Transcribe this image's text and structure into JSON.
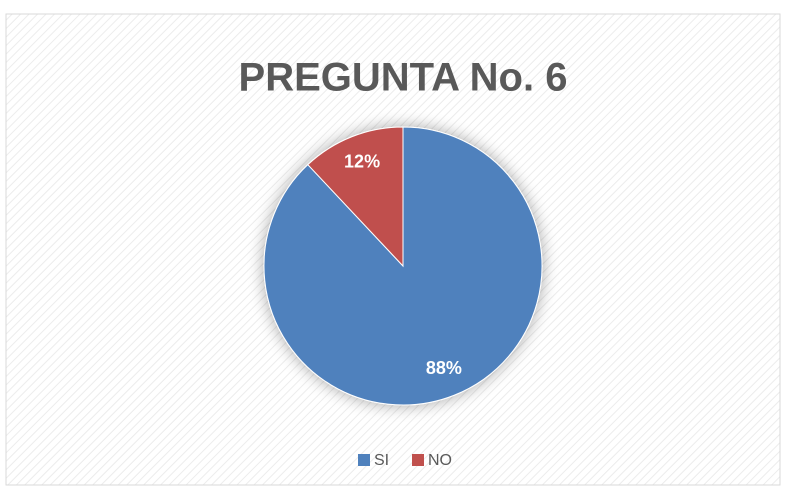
{
  "chart_data": {
    "type": "pie",
    "title": "PREGUNTA No. 6",
    "categories": [
      "SI",
      "NO"
    ],
    "values": [
      88,
      12
    ],
    "value_labels": [
      "88%",
      "12%"
    ],
    "colors": [
      "#4f81bd",
      "#c0504d"
    ],
    "legend": "bottom"
  }
}
